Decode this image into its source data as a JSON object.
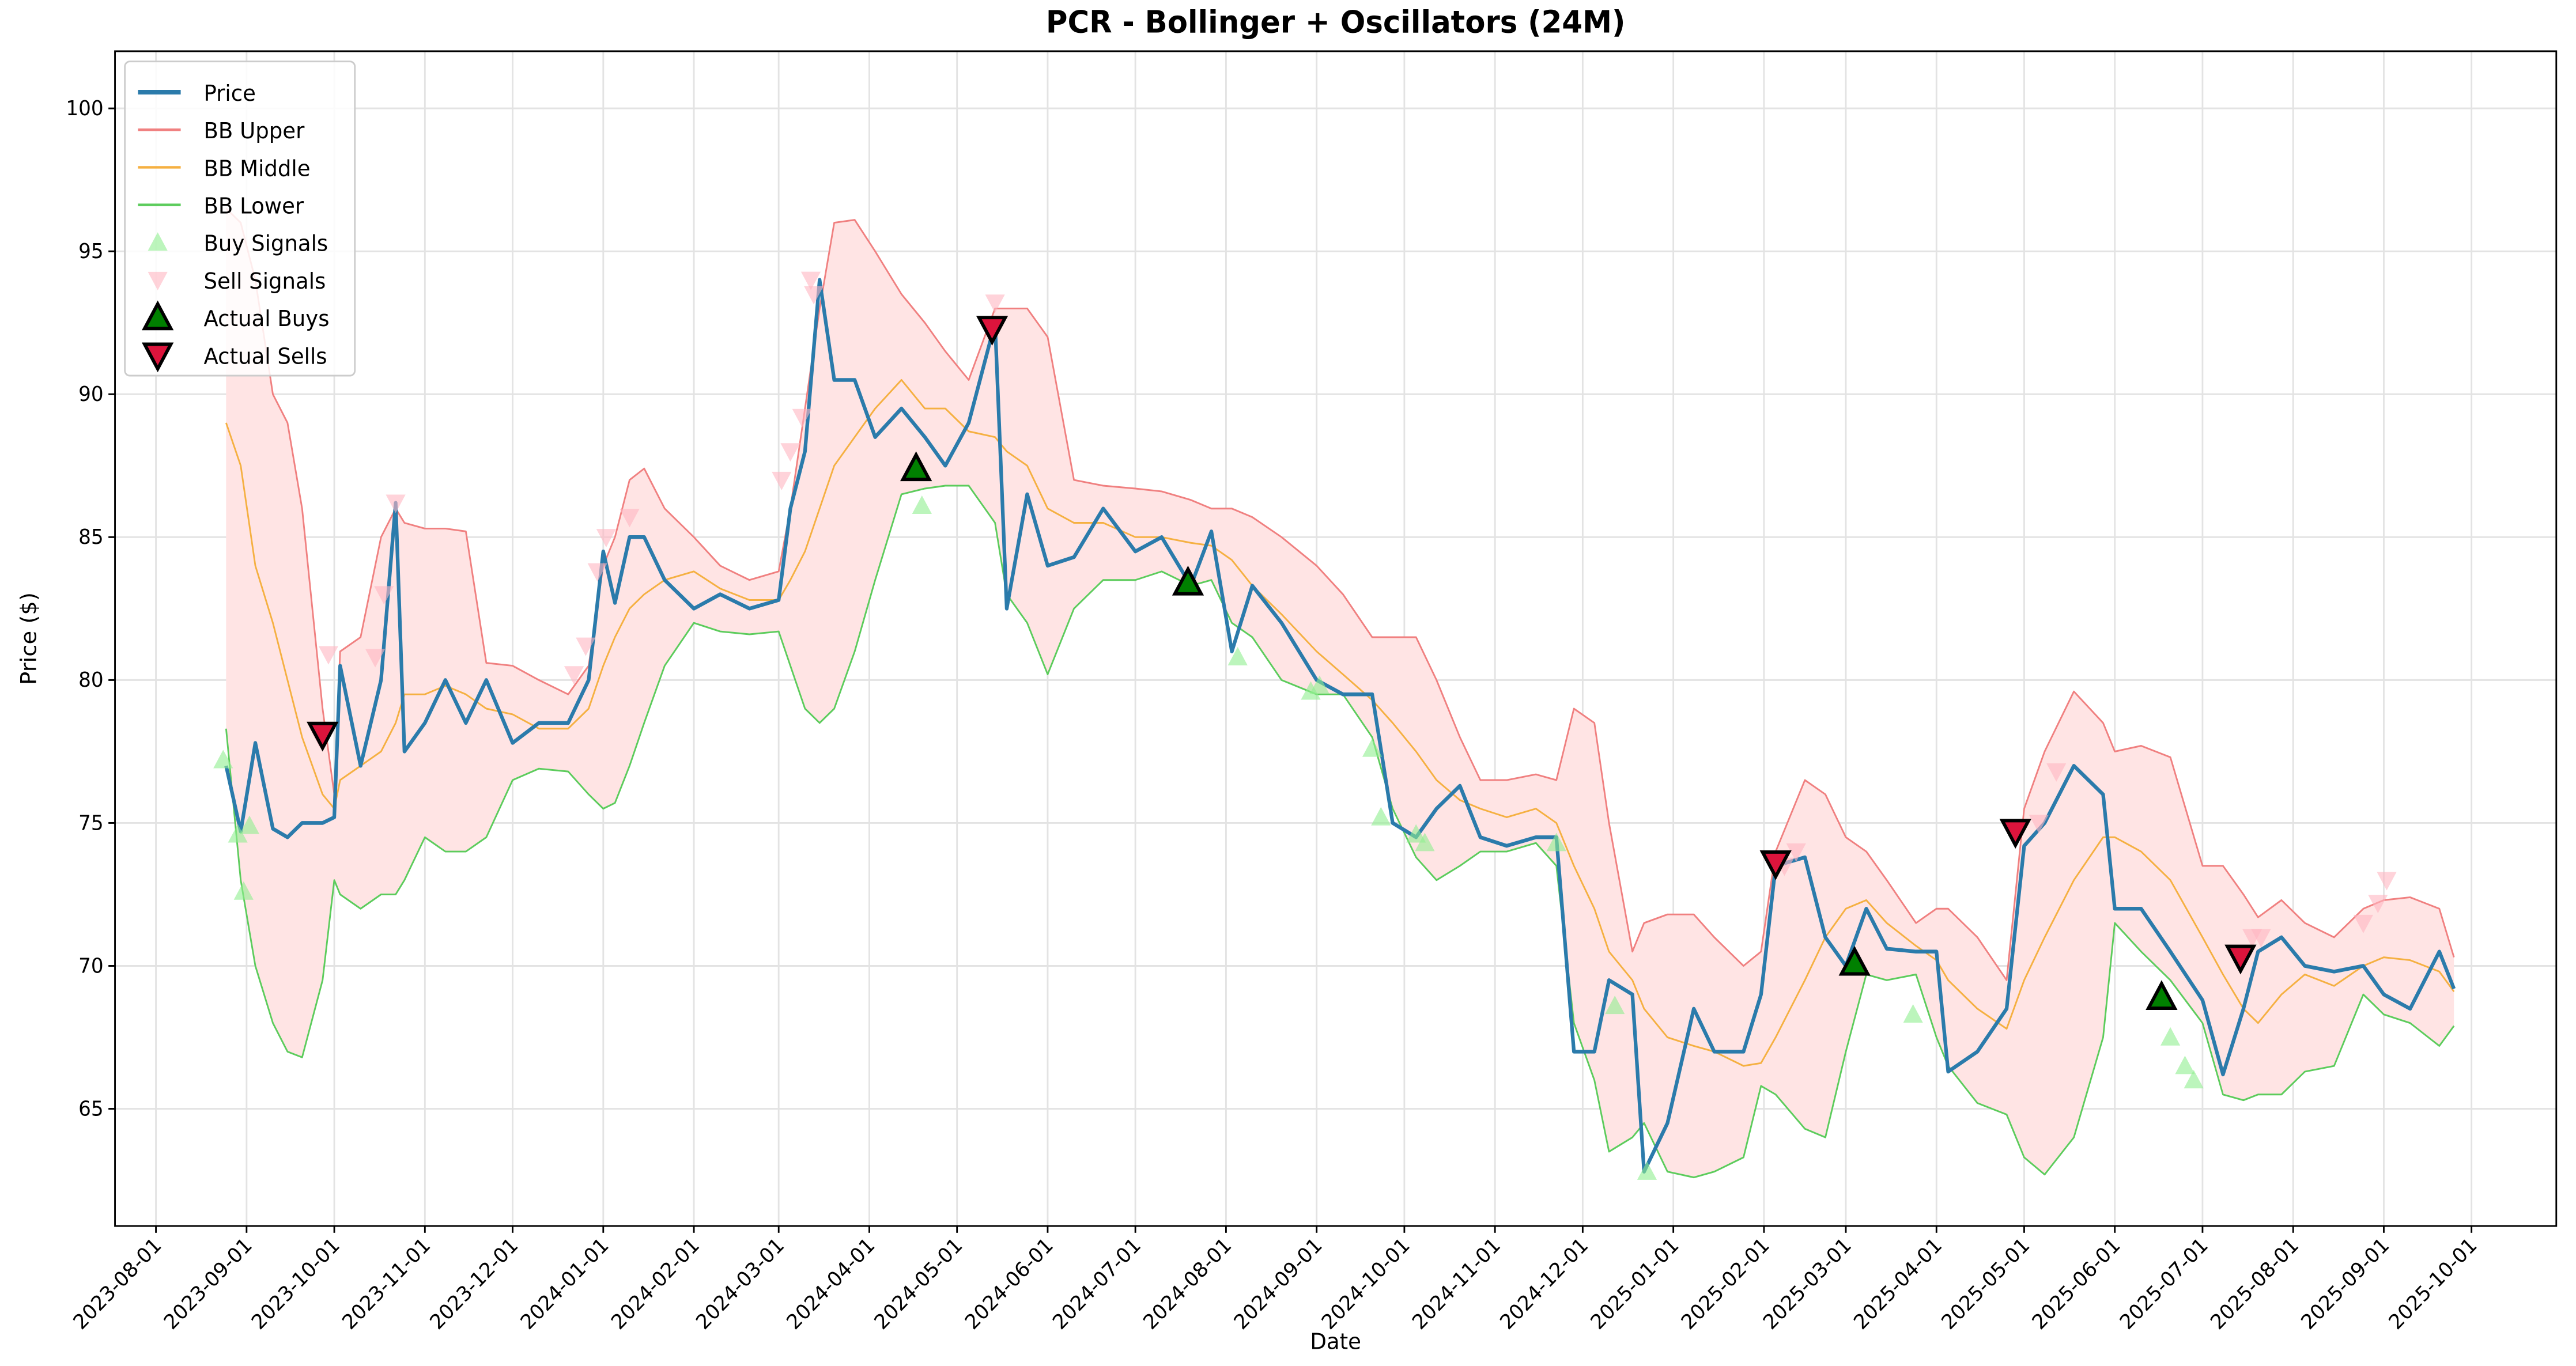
{
  "chart_data": {
    "type": "line",
    "title": "PCR - Bollinger + Oscillators (24M)",
    "xlabel": "Date",
    "ylabel": "Price ($)",
    "xlim": [
      "2023-07-18",
      "2025-10-30"
    ],
    "ylim": [
      60.9,
      102.0
    ],
    "xticks": [
      "2023-08-01",
      "2023-09-01",
      "2023-10-01",
      "2023-11-01",
      "2023-12-01",
      "2024-01-01",
      "2024-02-01",
      "2024-03-01",
      "2024-04-01",
      "2024-05-01",
      "2024-06-01",
      "2024-07-01",
      "2024-08-01",
      "2024-09-01",
      "2024-10-01",
      "2024-11-01",
      "2024-12-01",
      "2025-01-01",
      "2025-02-01",
      "2025-03-01",
      "2025-04-01",
      "2025-05-01",
      "2025-06-01",
      "2025-07-01",
      "2025-08-01",
      "2025-09-01",
      "2025-10-01"
    ],
    "yticks": [
      65,
      70,
      75,
      80,
      85,
      90,
      95,
      100
    ],
    "grid": true,
    "legend": "upper left",
    "band_color": "#ffe4e4",
    "x": [
      "2023-08-25",
      "2023-08-30",
      "2023-09-04",
      "2023-09-10",
      "2023-09-15",
      "2023-09-20",
      "2023-09-27",
      "2023-10-01",
      "2023-10-03",
      "2023-10-10",
      "2023-10-17",
      "2023-10-22",
      "2023-10-25",
      "2023-11-01",
      "2023-11-08",
      "2023-11-15",
      "2023-11-22",
      "2023-12-01",
      "2023-12-10",
      "2023-12-20",
      "2023-12-27",
      "2024-01-01",
      "2024-01-05",
      "2024-01-10",
      "2024-01-15",
      "2024-01-22",
      "2024-02-01",
      "2024-02-10",
      "2024-02-20",
      "2024-03-01",
      "2024-03-05",
      "2024-03-10",
      "2024-03-15",
      "2024-03-20",
      "2024-03-27",
      "2024-04-03",
      "2024-04-12",
      "2024-04-20",
      "2024-04-27",
      "2024-05-05",
      "2024-05-14",
      "2024-05-18",
      "2024-05-25",
      "2024-06-01",
      "2024-06-10",
      "2024-06-20",
      "2024-07-01",
      "2024-07-10",
      "2024-07-20",
      "2024-07-27",
      "2024-08-03",
      "2024-08-10",
      "2024-08-20",
      "2024-09-01",
      "2024-09-10",
      "2024-09-20",
      "2024-09-27",
      "2024-10-05",
      "2024-10-12",
      "2024-10-20",
      "2024-10-27",
      "2024-11-05",
      "2024-11-15",
      "2024-11-22",
      "2024-11-28",
      "2024-12-05",
      "2024-12-10",
      "2024-12-18",
      "2024-12-22",
      "2024-12-30",
      "2025-01-08",
      "2025-01-15",
      "2025-01-25",
      "2025-01-31",
      "2025-02-05",
      "2025-02-15",
      "2025-02-22",
      "2025-03-01",
      "2025-03-08",
      "2025-03-15",
      "2025-03-25",
      "2025-04-01",
      "2025-04-05",
      "2025-04-15",
      "2025-04-25",
      "2025-05-01",
      "2025-05-08",
      "2025-05-18",
      "2025-05-28",
      "2025-06-01",
      "2025-06-10",
      "2025-06-20",
      "2025-07-01",
      "2025-07-08",
      "2025-07-15",
      "2025-07-20",
      "2025-07-28",
      "2025-08-05",
      "2025-08-15",
      "2025-08-25",
      "2025-09-01",
      "2025-09-10",
      "2025-09-20",
      "2025-09-25"
    ],
    "series": [
      {
        "name": "Price",
        "color": "#2b7bab",
        "linewidth": 2.2,
        "values": [
          77.0,
          74.7,
          77.8,
          74.8,
          74.5,
          75.0,
          75.0,
          75.2,
          80.5,
          77.0,
          80.0,
          86.2,
          77.5,
          78.5,
          80.0,
          78.5,
          80.0,
          77.8,
          78.5,
          78.5,
          80.0,
          84.5,
          82.7,
          85.0,
          85.0,
          83.5,
          82.5,
          83.0,
          82.5,
          82.8,
          86.0,
          88.0,
          94.0,
          90.5,
          90.5,
          88.5,
          89.5,
          88.5,
          87.5,
          89.0,
          92.5,
          82.5,
          86.5,
          84.0,
          84.3,
          86.0,
          84.5,
          85.0,
          83.3,
          85.2,
          81.0,
          83.3,
          82.0,
          80.0,
          79.5,
          79.5,
          75.0,
          74.5,
          75.5,
          76.3,
          74.5,
          74.2,
          74.5,
          74.5,
          67.0,
          67.0,
          69.5,
          69.0,
          62.8,
          64.5,
          68.5,
          67.0,
          67.0,
          69.0,
          73.5,
          73.8,
          71.0,
          70.0,
          72.0,
          70.6,
          70.5,
          70.5,
          66.3,
          67.0,
          68.5,
          74.2,
          75.0,
          77.0,
          76.0,
          72.0,
          72.0,
          70.5,
          68.8,
          66.2,
          68.5,
          70.5,
          71.0,
          70.0,
          69.8,
          70.0,
          69.0,
          68.5,
          70.5,
          69.2
        ]
      },
      {
        "name": "BB Upper",
        "color": "#f08080",
        "linewidth": 1,
        "values": [
          96.5,
          96.0,
          94.0,
          90.0,
          89.0,
          86.0,
          79.0,
          76.0,
          81.0,
          81.5,
          85.0,
          86.0,
          85.5,
          85.3,
          85.3,
          85.2,
          80.6,
          80.5,
          80.0,
          79.5,
          80.5,
          84.0,
          85.0,
          87.0,
          87.4,
          86.0,
          85.0,
          84.0,
          83.5,
          83.8,
          86.0,
          89.5,
          93.0,
          96.0,
          96.1,
          95.0,
          93.5,
          92.5,
          91.5,
          90.5,
          93.0,
          93.0,
          93.0,
          92.0,
          87.0,
          86.8,
          86.7,
          86.6,
          86.3,
          86.0,
          86.0,
          85.7,
          85.0,
          84.0,
          83.0,
          81.5,
          81.5,
          81.5,
          80.0,
          78.0,
          76.5,
          76.5,
          76.7,
          76.5,
          79.0,
          78.5,
          75.0,
          70.5,
          71.5,
          71.8,
          71.8,
          71.0,
          70.0,
          70.5,
          74.0,
          76.5,
          76.0,
          74.5,
          74.0,
          73.0,
          71.5,
          72.0,
          72.0,
          71.0,
          69.5,
          75.5,
          77.5,
          79.6,
          78.5,
          77.5,
          77.7,
          77.3,
          73.5,
          73.5,
          72.5,
          71.7,
          72.3,
          71.5,
          71.0,
          72.0,
          72.3,
          72.4,
          72.0,
          70.3
        ]
      },
      {
        "name": "BB Middle",
        "color": "#f5b041",
        "linewidth": 1,
        "values": [
          89.0,
          87.5,
          84.0,
          82.0,
          80.0,
          78.0,
          76.0,
          75.5,
          76.5,
          77.0,
          77.5,
          78.5,
          79.5,
          79.5,
          79.8,
          79.5,
          79.0,
          78.8,
          78.3,
          78.3,
          79.0,
          80.5,
          81.5,
          82.5,
          83.0,
          83.5,
          83.8,
          83.2,
          82.8,
          82.8,
          83.5,
          84.5,
          86.0,
          87.5,
          88.5,
          89.5,
          90.5,
          89.5,
          89.5,
          88.7,
          88.5,
          88.0,
          87.5,
          86.0,
          85.5,
          85.5,
          85.0,
          85.0,
          84.8,
          84.7,
          84.2,
          83.3,
          82.3,
          81.0,
          80.2,
          79.3,
          78.5,
          77.5,
          76.5,
          75.8,
          75.5,
          75.2,
          75.5,
          75.0,
          73.5,
          72.0,
          70.5,
          69.5,
          68.5,
          67.5,
          67.2,
          67.0,
          66.5,
          66.6,
          67.5,
          69.5,
          71.0,
          72.0,
          72.3,
          71.5,
          70.7,
          70.2,
          69.5,
          68.5,
          67.8,
          69.5,
          71.0,
          73.0,
          74.5,
          74.5,
          74.0,
          73.0,
          71.0,
          69.7,
          68.5,
          68.0,
          69.0,
          69.7,
          69.3,
          70.0,
          70.3,
          70.2,
          69.8,
          69.1
        ]
      },
      {
        "name": "BB Lower",
        "color": "#5ccc5c",
        "linewidth": 1,
        "values": [
          78.3,
          73.0,
          70.0,
          68.0,
          67.0,
          66.8,
          69.5,
          73.0,
          72.5,
          72.0,
          72.5,
          72.5,
          73.0,
          74.5,
          74.0,
          74.0,
          74.5,
          76.5,
          76.9,
          76.8,
          76.0,
          75.5,
          75.7,
          77.0,
          78.5,
          80.5,
          82.0,
          81.7,
          81.6,
          81.7,
          80.5,
          79.0,
          78.5,
          79.0,
          81.0,
          83.5,
          86.5,
          86.7,
          86.8,
          86.8,
          85.5,
          83.0,
          82.0,
          80.2,
          82.5,
          83.5,
          83.5,
          83.8,
          83.3,
          83.5,
          82.0,
          81.5,
          80.0,
          79.5,
          79.5,
          78.0,
          75.5,
          73.8,
          73.0,
          73.5,
          74.0,
          74.0,
          74.3,
          73.5,
          68.0,
          66.0,
          63.5,
          64.0,
          64.5,
          62.8,
          62.6,
          62.8,
          63.3,
          65.8,
          65.5,
          64.3,
          64.0,
          67.0,
          69.7,
          69.5,
          69.7,
          67.5,
          66.5,
          65.2,
          64.8,
          63.3,
          62.7,
          64.0,
          67.5,
          71.5,
          70.5,
          69.5,
          68.0,
          65.5,
          65.3,
          65.5,
          65.5,
          66.3,
          66.5,
          69.0,
          68.3,
          68.0,
          67.2,
          67.9
        ]
      },
      {
        "name": "Buy Signals",
        "color": "#90ee90",
        "marker": "^",
        "alpha": 0.6,
        "x": [
          "2023-08-24",
          "2023-08-29",
          "2023-08-31",
          "2023-09-02",
          "2024-04-19",
          "2024-08-05",
          "2024-08-30",
          "2024-09-02",
          "2024-09-20",
          "2024-09-23",
          "2024-10-05",
          "2024-10-08",
          "2024-11-22",
          "2024-12-12",
          "2024-12-23",
          "2025-03-04",
          "2025-03-24",
          "2025-06-20",
          "2025-06-25",
          "2025-06-28"
        ],
        "values": [
          77.2,
          74.6,
          72.6,
          74.9,
          86.1,
          80.8,
          79.6,
          79.8,
          77.6,
          75.2,
          74.6,
          74.3,
          74.3,
          68.6,
          62.8,
          70.0,
          68.3,
          67.5,
          66.5,
          66.0
        ]
      },
      {
        "name": "Sell Signals",
        "color": "#ffb6c1",
        "marker": "v",
        "alpha": 0.6,
        "x": [
          "2023-09-26",
          "2023-09-29",
          "2023-10-15",
          "2023-10-18",
          "2023-10-22",
          "2023-12-22",
          "2023-12-26",
          "2023-12-30",
          "2024-01-02",
          "2024-01-10",
          "2024-03-02",
          "2024-03-05",
          "2024-03-09",
          "2024-03-12",
          "2024-03-13",
          "2024-05-14",
          "2025-02-08",
          "2025-02-12",
          "2025-05-06",
          "2025-05-12",
          "2025-07-18",
          "2025-07-21",
          "2025-08-25",
          "2025-08-30",
          "2025-09-02"
        ],
        "values": [
          78.0,
          80.9,
          80.8,
          83.0,
          86.2,
          80.2,
          81.2,
          83.8,
          85.0,
          85.7,
          87.0,
          88.0,
          89.2,
          94.0,
          93.5,
          93.2,
          73.5,
          74.0,
          75.0,
          76.8,
          71.0,
          71.0,
          71.5,
          72.2,
          73.0
        ]
      },
      {
        "name": "Actual Buys",
        "color": "#008000",
        "marker": "^",
        "edgecolor": "#000000",
        "x": [
          "2024-04-17",
          "2024-07-19",
          "2025-03-04",
          "2025-06-17"
        ],
        "values": [
          87.4,
          83.4,
          70.1,
          68.9
        ]
      },
      {
        "name": "Actual Sells",
        "color": "#dc143c",
        "marker": "v",
        "edgecolor": "#000000",
        "x": [
          "2023-09-27",
          "2024-05-13",
          "2025-02-05",
          "2025-04-28",
          "2025-07-14"
        ],
        "values": [
          78.1,
          92.3,
          73.6,
          74.7,
          70.3
        ]
      }
    ]
  }
}
